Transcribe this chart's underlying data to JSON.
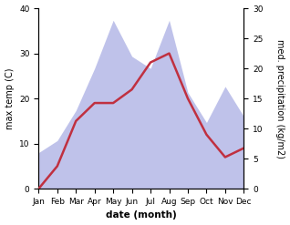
{
  "months": [
    "Jan",
    "Feb",
    "Mar",
    "Apr",
    "May",
    "Jun",
    "Jul",
    "Aug",
    "Sep",
    "Oct",
    "Nov",
    "Dec"
  ],
  "temperature": [
    0,
    5,
    15,
    19,
    19,
    22,
    28,
    30,
    20,
    12,
    7,
    9
  ],
  "precipitation": [
    6,
    8,
    13,
    20,
    28,
    22,
    20,
    28,
    16,
    11,
    17,
    12
  ],
  "temp_ylim": [
    0,
    40
  ],
  "precip_ylim": [
    0,
    30
  ],
  "temp_color": "#c03040",
  "precip_color_fill": "#b8bce8",
  "xlabel": "date (month)",
  "ylabel_left": "max temp (C)",
  "ylabel_right": "med. precipitation (kg/m2)",
  "temp_linewidth": 1.8,
  "label_fontsize": 7,
  "tick_fontsize": 6.5,
  "xlabel_fontsize": 7.5,
  "ylabel_fontsize": 7
}
